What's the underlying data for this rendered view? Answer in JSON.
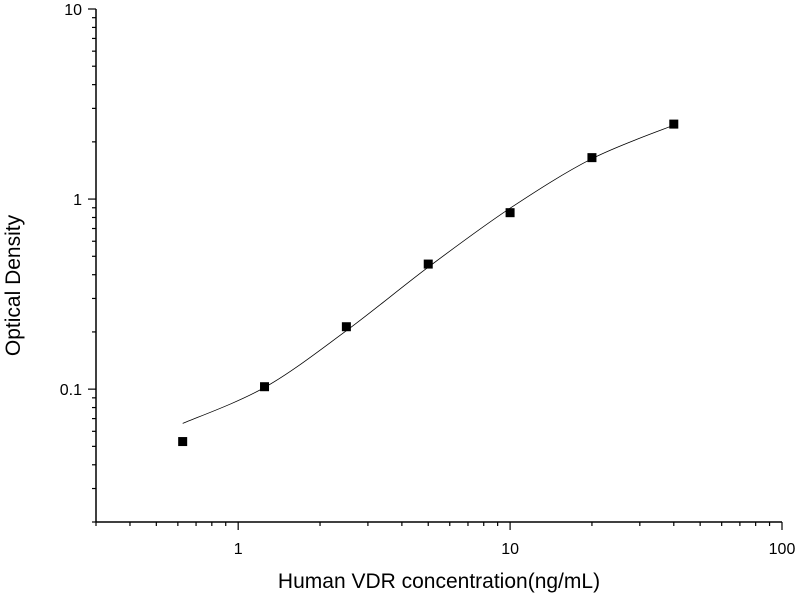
{
  "chart_data": {
    "type": "scatter",
    "title": "",
    "xlabel": "Human VDR concentration(ng/mL)",
    "ylabel": "Optical Density",
    "xscale": "log",
    "yscale": "log",
    "xlim": [
      0.3,
      100
    ],
    "ylim": [
      0.02,
      10
    ],
    "x_ticks": [
      {
        "value": 1,
        "label": "1"
      },
      {
        "value": 10,
        "label": "10"
      },
      {
        "value": 100,
        "label": "100"
      }
    ],
    "y_ticks": [
      {
        "value": 0.1,
        "label": "0.1"
      },
      {
        "value": 1,
        "label": "1"
      },
      {
        "value": 10,
        "label": "10"
      }
    ],
    "grid": false,
    "legend": "none",
    "points": [
      {
        "x": 0.625,
        "y": 0.053
      },
      {
        "x": 1.25,
        "y": 0.103
      },
      {
        "x": 2.5,
        "y": 0.213
      },
      {
        "x": 5,
        "y": 0.455
      },
      {
        "x": 10,
        "y": 0.848
      },
      {
        "x": 20,
        "y": 1.652
      },
      {
        "x": 40,
        "y": 2.48
      }
    ],
    "fit_curve": [
      {
        "x": 0.625,
        "y": 0.066
      },
      {
        "x": 1.25,
        "y": 0.102
      },
      {
        "x": 2.5,
        "y": 0.203
      },
      {
        "x": 5,
        "y": 0.438
      },
      {
        "x": 10,
        "y": 0.895
      },
      {
        "x": 20,
        "y": 1.63
      },
      {
        "x": 40,
        "y": 2.45
      }
    ],
    "colors": {
      "marker": "#000000",
      "line": "#000000",
      "axis": "#000000"
    }
  }
}
